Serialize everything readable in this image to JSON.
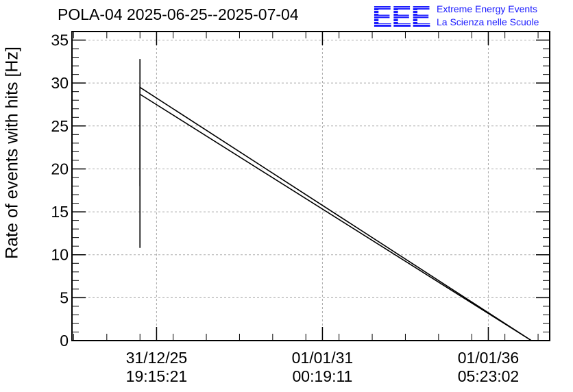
{
  "header": {
    "title": "POLA-04 2025-06-25--2025-07-04",
    "logo_text": "EEE",
    "org_line1": "Extreme Energy Events",
    "org_line2": "La Scienza nelle Scuole"
  },
  "colors": {
    "logo": "#1a1aff",
    "line": "#000000",
    "grid": "#aaaaaa"
  },
  "chart_data": {
    "type": "line",
    "title": "POLA-04 2025-06-25--2025-07-04",
    "ylabel": "Rate of events with hits [Hz]",
    "xlabel": "",
    "ylim": [
      0,
      36
    ],
    "xlim": [
      -0.51,
      2.37
    ],
    "yticks": [
      0,
      5,
      10,
      15,
      20,
      25,
      30,
      35
    ],
    "xticks": [
      {
        "value": 0,
        "line1": "31/12/25",
        "line2": "19:15:21"
      },
      {
        "value": 1,
        "line1": "01/01/31",
        "line2": "00:19:11"
      },
      {
        "value": 2,
        "line1": "01/01/36",
        "line2": "05:23:02"
      }
    ],
    "grid": true,
    "series": [
      {
        "values": [
          [
            -0.1,
            10.8
          ],
          [
            -0.1,
            32.8
          ]
        ]
      },
      {
        "values": [
          [
            -0.1,
            18.0
          ],
          [
            -0.1,
            29.5
          ],
          [
            2.26,
            0
          ]
        ]
      },
      {
        "values": [
          [
            -0.1,
            28.7
          ],
          [
            2.26,
            0
          ]
        ]
      }
    ]
  }
}
